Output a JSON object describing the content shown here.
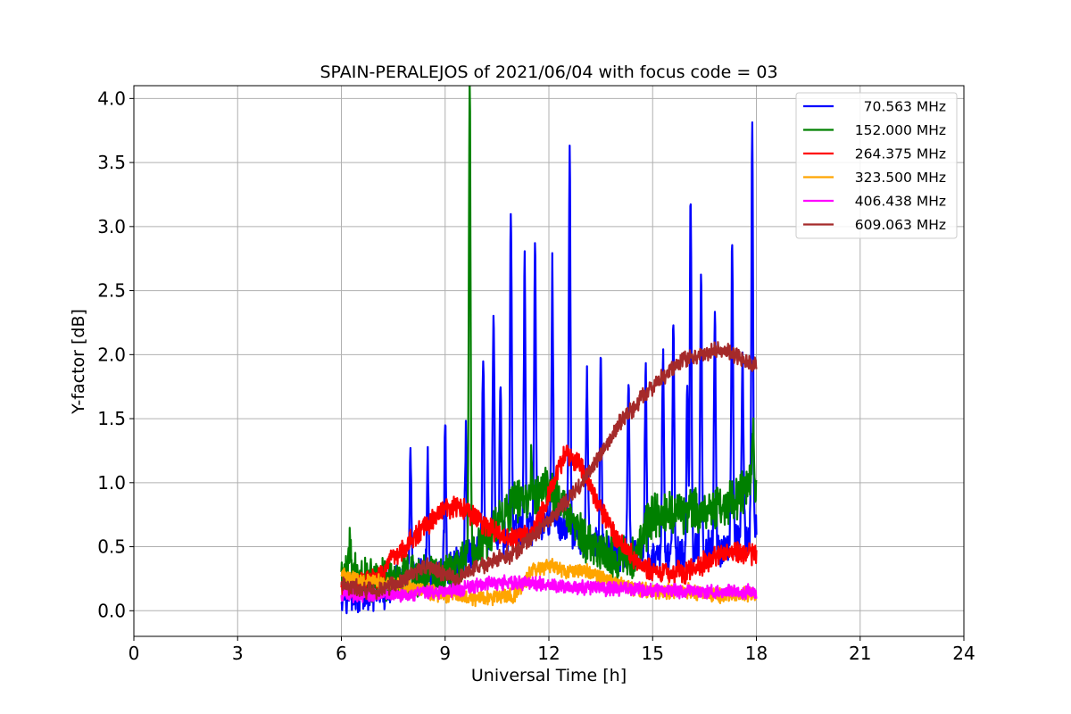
{
  "chart_data": {
    "type": "line",
    "title": "SPAIN-PERALEJOS of 2021/06/04 with focus code = 03",
    "xlabel": "Universal Time [h]",
    "ylabel": "Y-factor [dB]",
    "xlim": [
      0,
      24
    ],
    "ylim": [
      -0.2,
      4.1
    ],
    "xticks": [
      0,
      3,
      6,
      9,
      12,
      15,
      18,
      21,
      24
    ],
    "xtick_labels": [
      "0",
      "3",
      "6",
      "9",
      "12",
      "15",
      "18",
      "21",
      "24"
    ],
    "yticks": [
      0.0,
      0.5,
      1.0,
      1.5,
      2.0,
      2.5,
      3.0,
      3.5,
      4.0
    ],
    "ytick_labels": [
      "0.0",
      "0.5",
      "1.0",
      "1.5",
      "2.0",
      "2.5",
      "3.0",
      "3.5",
      "4.0"
    ],
    "grid": true,
    "legend_position": "top-right",
    "series": [
      {
        "name": "70.563 MHz",
        "color": "#0000ff",
        "base": [
          [
            6.0,
            0.15
          ],
          [
            7.0,
            0.12
          ],
          [
            8.0,
            0.25
          ],
          [
            9.0,
            0.3
          ],
          [
            10.0,
            0.5
          ],
          [
            11.0,
            0.6
          ],
          [
            12.0,
            0.7
          ],
          [
            13.0,
            0.55
          ],
          [
            14.0,
            0.45
          ],
          [
            15.0,
            0.4
          ],
          [
            16.0,
            0.45
          ],
          [
            17.0,
            0.5
          ],
          [
            18.0,
            0.6
          ]
        ],
        "noise": 0.12,
        "spikes": [
          [
            8.0,
            1.0
          ],
          [
            8.5,
            0.9
          ],
          [
            9.0,
            1.1
          ],
          [
            9.6,
            0.95
          ],
          [
            10.1,
            1.5
          ],
          [
            10.4,
            1.85
          ],
          [
            10.6,
            1.2
          ],
          [
            10.9,
            2.5
          ],
          [
            11.3,
            2.05
          ],
          [
            11.6,
            2.2
          ],
          [
            12.1,
            1.95
          ],
          [
            12.6,
            2.95
          ],
          [
            13.1,
            1.3
          ],
          [
            13.5,
            1.5
          ],
          [
            14.3,
            1.4
          ],
          [
            14.8,
            1.55
          ],
          [
            15.3,
            1.7
          ],
          [
            15.6,
            1.9
          ],
          [
            16.0,
            1.3
          ],
          [
            16.1,
            2.8
          ],
          [
            16.4,
            2.1
          ],
          [
            16.8,
            1.8
          ],
          [
            17.3,
            2.35
          ],
          [
            17.6,
            1.5
          ],
          [
            17.88,
            3.15
          ]
        ]
      },
      {
        "name": "152.000 MHz",
        "color": "#008000",
        "base": [
          [
            6.0,
            0.3
          ],
          [
            7.0,
            0.25
          ],
          [
            8.0,
            0.25
          ],
          [
            9.0,
            0.3
          ],
          [
            10.0,
            0.5
          ],
          [
            11.0,
            0.85
          ],
          [
            12.0,
            0.95
          ],
          [
            12.5,
            0.8
          ],
          [
            13.0,
            0.55
          ],
          [
            14.0,
            0.4
          ],
          [
            14.5,
            0.45
          ],
          [
            15.0,
            0.75
          ],
          [
            16.0,
            0.78
          ],
          [
            17.0,
            0.8
          ],
          [
            18.0,
            1.0
          ]
        ],
        "noise": 0.14,
        "spikes": [
          [
            6.25,
            0.25
          ],
          [
            9.71,
            3.6
          ],
          [
            11.5,
            0.3
          ],
          [
            17.9,
            0.4
          ]
        ]
      },
      {
        "name": "264.375 MHz",
        "color": "#ff0000",
        "base": [
          [
            6.0,
            0.18
          ],
          [
            7.0,
            0.25
          ],
          [
            8.0,
            0.55
          ],
          [
            9.0,
            0.8
          ],
          [
            9.5,
            0.8
          ],
          [
            10.0,
            0.7
          ],
          [
            10.8,
            0.55
          ],
          [
            11.5,
            0.6
          ],
          [
            12.0,
            0.9
          ],
          [
            12.5,
            1.25
          ],
          [
            13.0,
            1.1
          ],
          [
            13.5,
            0.8
          ],
          [
            14.0,
            0.55
          ],
          [
            14.5,
            0.4
          ],
          [
            15.0,
            0.3
          ],
          [
            16.0,
            0.3
          ],
          [
            17.0,
            0.45
          ],
          [
            18.0,
            0.45
          ]
        ],
        "noise": 0.07,
        "spikes": []
      },
      {
        "name": "323.500 MHz",
        "color": "#ffa500",
        "base": [
          [
            6.0,
            0.28
          ],
          [
            7.0,
            0.22
          ],
          [
            8.0,
            0.18
          ],
          [
            9.0,
            0.12
          ],
          [
            10.0,
            0.1
          ],
          [
            11.0,
            0.12
          ],
          [
            11.5,
            0.3
          ],
          [
            12.0,
            0.35
          ],
          [
            12.5,
            0.3
          ],
          [
            13.0,
            0.32
          ],
          [
            14.0,
            0.2
          ],
          [
            15.0,
            0.15
          ],
          [
            16.0,
            0.15
          ],
          [
            17.0,
            0.12
          ],
          [
            18.0,
            0.12
          ]
        ],
        "noise": 0.05,
        "spikes": []
      },
      {
        "name": "406.438 MHz",
        "color": "#ff00ff",
        "base": [
          [
            6.0,
            0.12
          ],
          [
            7.0,
            0.13
          ],
          [
            8.0,
            0.13
          ],
          [
            9.0,
            0.15
          ],
          [
            10.0,
            0.2
          ],
          [
            10.5,
            0.22
          ],
          [
            11.0,
            0.22
          ],
          [
            12.0,
            0.2
          ],
          [
            13.0,
            0.18
          ],
          [
            14.0,
            0.17
          ],
          [
            15.0,
            0.16
          ],
          [
            16.0,
            0.15
          ],
          [
            17.0,
            0.15
          ],
          [
            18.0,
            0.15
          ]
        ],
        "noise": 0.045,
        "spikes": []
      },
      {
        "name": "609.063 MHz",
        "color": "#a52a2a",
        "base": [
          [
            6.0,
            0.2
          ],
          [
            7.0,
            0.15
          ],
          [
            7.5,
            0.2
          ],
          [
            8.5,
            0.35
          ],
          [
            9.3,
            0.25
          ],
          [
            10.0,
            0.35
          ],
          [
            11.0,
            0.45
          ],
          [
            12.0,
            0.7
          ],
          [
            13.0,
            1.0
          ],
          [
            14.0,
            1.45
          ],
          [
            15.0,
            1.75
          ],
          [
            15.8,
            1.95
          ],
          [
            16.5,
            2.0
          ],
          [
            17.0,
            2.05
          ],
          [
            18.0,
            1.9
          ]
        ],
        "noise": 0.055,
        "spikes": []
      }
    ]
  }
}
